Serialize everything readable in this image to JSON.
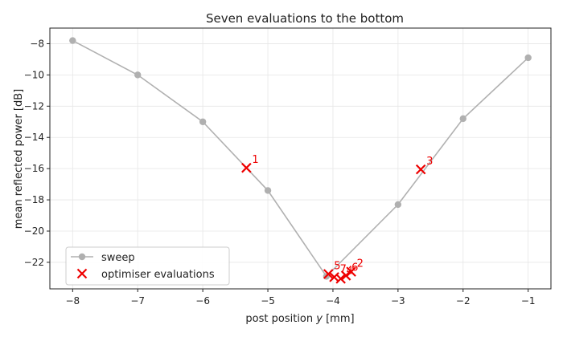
{
  "chart_data": {
    "type": "line",
    "title": "Seven evaluations to the bottom",
    "xlabel_prefix": "post position ",
    "xlabel_var": "y",
    "xlabel_suffix": " [mm]",
    "ylabel": "mean reflected power [dB]",
    "xlim": [
      -8.35,
      -0.65
    ],
    "ylim": [
      -23.7,
      -7.0
    ],
    "xticks": [
      -8,
      -7,
      -6,
      -5,
      -4,
      -3,
      -2,
      -1
    ],
    "yticks": [
      -8,
      -10,
      -12,
      -14,
      -16,
      -18,
      -20,
      -22
    ],
    "grid": true,
    "legend_position": "lower-left",
    "sweep": {
      "name": "sweep",
      "color": "#b0b0b0",
      "x": [
        -8,
        -7,
        -6,
        -5,
        -4.1,
        -3,
        -2,
        -1
      ],
      "y": [
        -7.8,
        -10.0,
        -13.0,
        -17.4,
        -22.9,
        -18.3,
        -12.8,
        -8.9
      ]
    },
    "evaluations": {
      "name": "optimiser evaluations",
      "color": "#ee0000",
      "points": [
        {
          "label": "1",
          "x": -5.33,
          "y": -15.95
        },
        {
          "label": "2",
          "x": -3.72,
          "y": -22.6
        },
        {
          "label": "3",
          "x": -2.65,
          "y": -16.05
        },
        {
          "label": "4",
          "x": -3.88,
          "y": -23.05
        },
        {
          "label": "5",
          "x": -4.07,
          "y": -22.75
        },
        {
          "label": "6",
          "x": -3.8,
          "y": -22.85
        },
        {
          "label": "7",
          "x": -3.98,
          "y": -22.95
        }
      ]
    }
  }
}
